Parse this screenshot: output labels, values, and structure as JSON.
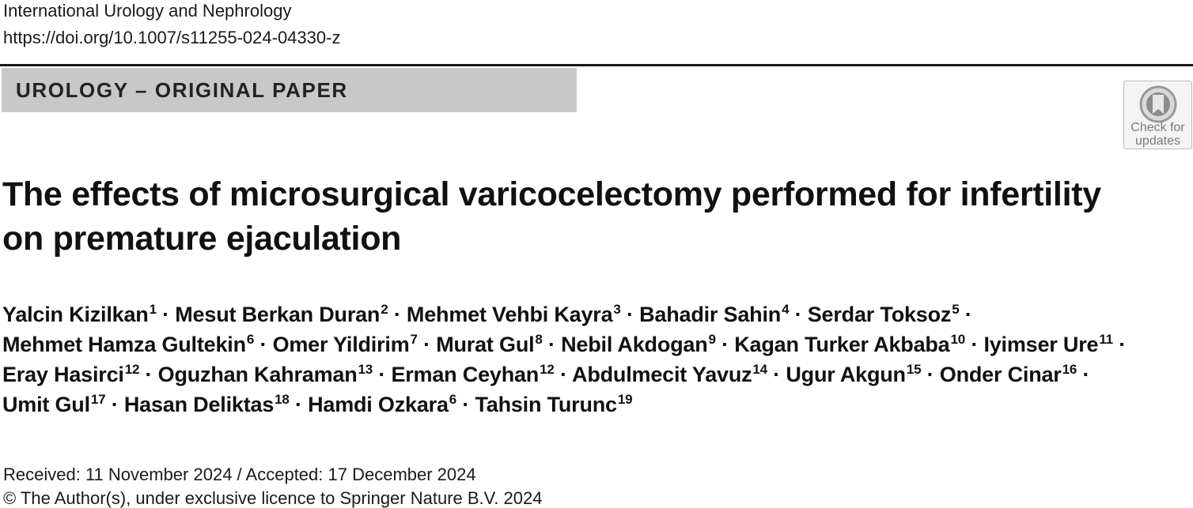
{
  "header": {
    "journal": "International Urology and Nephrology",
    "doi": "https://doi.org/10.1007/s11255-024-04330-z"
  },
  "section_label": "UROLOGY – ORIGINAL PAPER",
  "check_updates": {
    "label": "Check for updates",
    "icon": "bookmark-ribbon-icon"
  },
  "title_lines": [
    "The effects of microsurgical varicocelectomy performed for infertility",
    "on premature ejaculation"
  ],
  "author_separator": "·",
  "author_lines": [
    [
      {
        "name": "Yalcin Kizilkan",
        "aff": "1"
      },
      {
        "name": "Mesut Berkan Duran",
        "aff": "2"
      },
      {
        "name": "Mehmet Vehbi Kayra",
        "aff": "3"
      },
      {
        "name": "Bahadir Sahin",
        "aff": "4"
      },
      {
        "name": "Serdar Toksoz",
        "aff": "5"
      }
    ],
    [
      {
        "name": "Mehmet Hamza Gultekin",
        "aff": "6"
      },
      {
        "name": "Omer Yildirim",
        "aff": "7"
      },
      {
        "name": "Murat Gul",
        "aff": "8"
      },
      {
        "name": "Nebil Akdogan",
        "aff": "9"
      },
      {
        "name": "Kagan Turker Akbaba",
        "aff": "10"
      },
      {
        "name": "Iyimser Ure",
        "aff": "11"
      }
    ],
    [
      {
        "name": "Eray Hasirci",
        "aff": "12"
      },
      {
        "name": "Oguzhan Kahraman",
        "aff": "13"
      },
      {
        "name": "Erman Ceyhan",
        "aff": "12"
      },
      {
        "name": "Abdulmecit Yavuz",
        "aff": "14"
      },
      {
        "name": "Ugur Akgun",
        "aff": "15"
      },
      {
        "name": "Onder Cinar",
        "aff": "16"
      }
    ],
    [
      {
        "name": "Umit Gul",
        "aff": "17"
      },
      {
        "name": "Hasan Deliktas",
        "aff": "18"
      },
      {
        "name": "Hamdi Ozkara",
        "aff": "6"
      },
      {
        "name": "Tahsin Turunc",
        "aff": "19"
      }
    ]
  ],
  "dates": "Received: 11 November 2024 / Accepted: 17 December 2024",
  "copyright": "© The Author(s), under exclusive licence to Springer Nature B.V. 2024"
}
